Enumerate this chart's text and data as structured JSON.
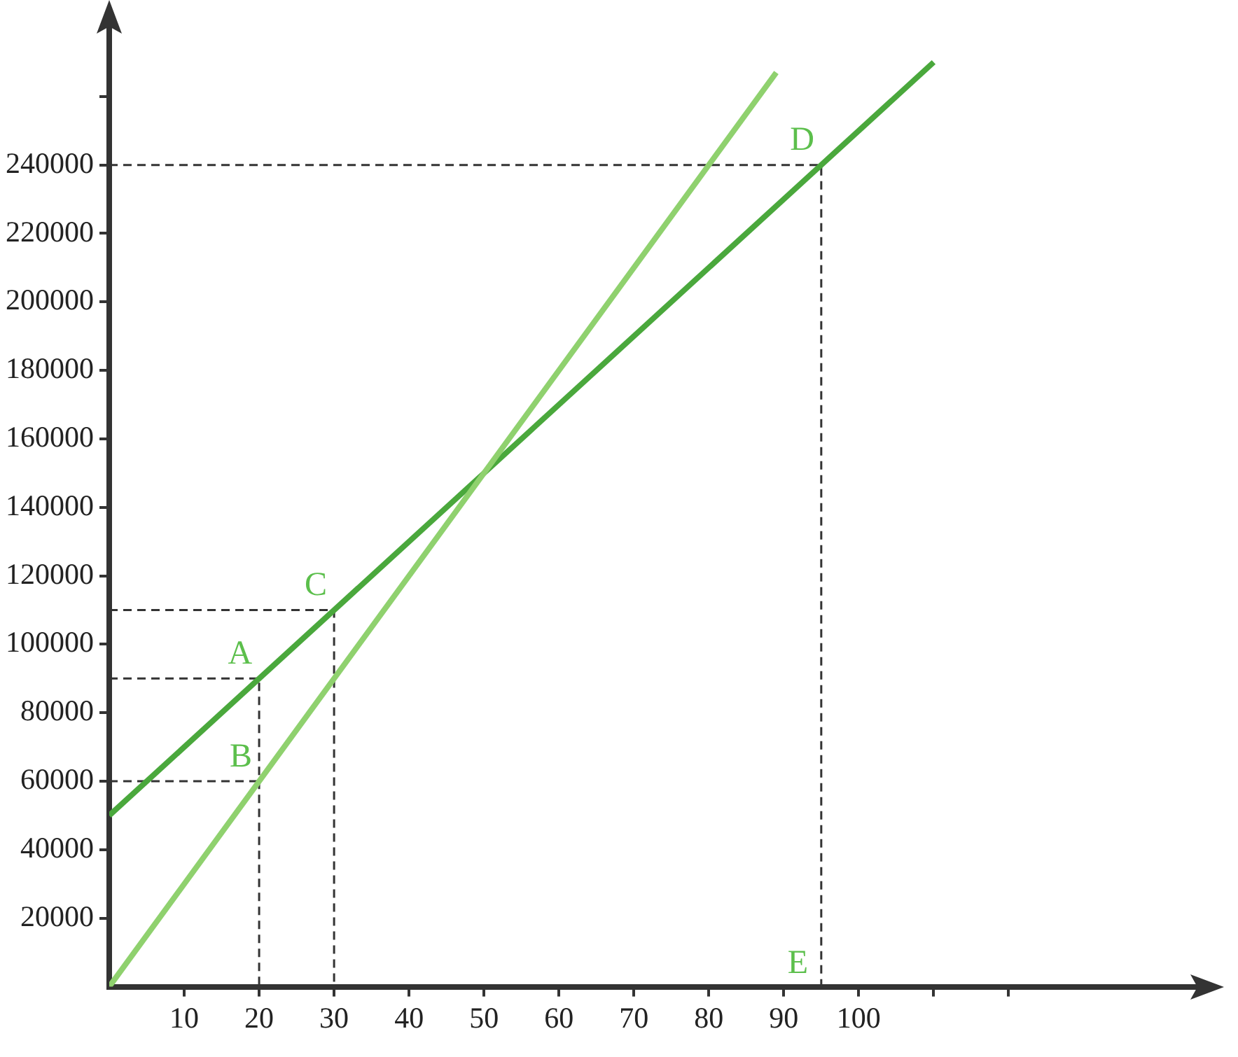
{
  "chart_data": {
    "type": "line",
    "xlim": [
      0,
      145
    ],
    "ylim": [
      0,
      280000
    ],
    "xticks": [
      10,
      20,
      30,
      40,
      50,
      60,
      70,
      80,
      90,
      100,
      {
        "value": 110,
        "label": null
      },
      {
        "value": 120,
        "label": null
      }
    ],
    "yticks": [
      20000,
      40000,
      60000,
      80000,
      100000,
      120000,
      140000,
      160000,
      180000,
      200000,
      220000,
      240000,
      {
        "value": 260000,
        "label": null
      }
    ],
    "grid": false,
    "legend": false,
    "marker": "none",
    "series": [
      {
        "color": "#8fd16e",
        "x": [
          0,
          89
        ],
        "values": [
          0,
          267000
        ]
      },
      {
        "color": "#4aa83c",
        "x": [
          0,
          110
        ],
        "values": [
          50000,
          270000
        ]
      },
      {
        "color": "#333333",
        "line_style": "dashed",
        "x": [
          0,
          20,
          20
        ],
        "values": [
          90000,
          90000,
          0
        ]
      },
      {
        "color": "#333333",
        "line_style": "dashed",
        "x": [
          0,
          20
        ],
        "values": [
          60000,
          60000
        ]
      },
      {
        "color": "#333333",
        "line_style": "dashed",
        "x": [
          0,
          30,
          30
        ],
        "values": [
          110000,
          110000,
          0
        ]
      },
      {
        "color": "#333333",
        "line_style": "dashed",
        "x": [
          0,
          95,
          95
        ],
        "values": [
          240000,
          240000,
          0
        ]
      }
    ],
    "annotations": [
      {
        "text": "A",
        "x": 20,
        "y": 90000
      },
      {
        "text": "B",
        "x": 20,
        "y": 60000
      },
      {
        "text": "C",
        "x": 30,
        "y": 110000
      },
      {
        "text": "D",
        "x": 95,
        "y": 240000
      },
      {
        "text": "E",
        "x": 95,
        "y": 0
      }
    ]
  }
}
